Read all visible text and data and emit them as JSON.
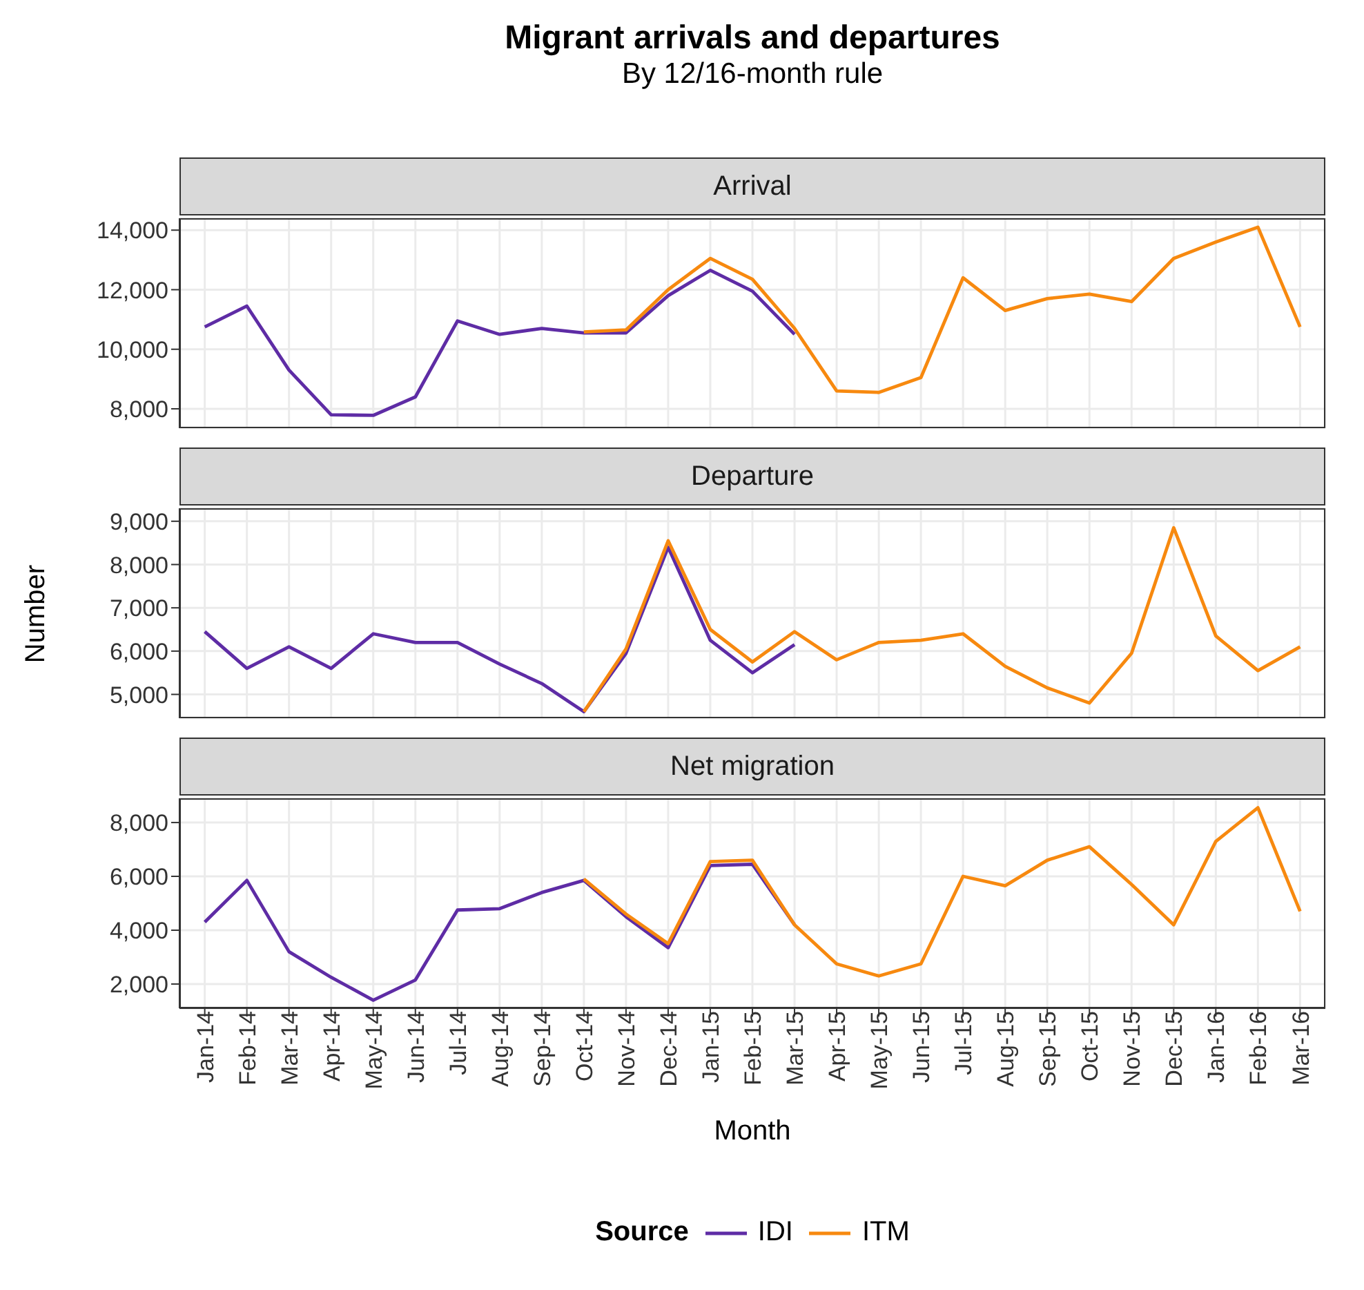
{
  "chart_data": [
    {
      "type": "line",
      "title": "Migrant arrivals and departures",
      "subtitle": "By 12/16-month rule",
      "annotations": [
        "Arrival"
      ],
      "series": [
        {
          "color": "#5e2ca5",
          "values": [
            10750,
            11450,
            9300,
            7800,
            7780,
            8400,
            10950,
            10500,
            10700,
            10550,
            10550,
            11800,
            12650,
            11950,
            10500,
            null,
            null,
            null,
            null,
            null,
            null,
            null,
            null,
            null,
            null,
            null,
            null
          ]
        },
        {
          "color": "#f7890f",
          "values": [
            null,
            null,
            null,
            null,
            null,
            null,
            null,
            null,
            null,
            10580,
            10650,
            12000,
            13050,
            12350,
            10700,
            8600,
            8550,
            9050,
            12400,
            11300,
            11700,
            11850,
            11600,
            13050,
            13600,
            14100,
            10750
          ]
        }
      ],
      "ylim": [
        7350,
        14400
      ],
      "yticks": [
        {
          "value": 8000,
          "label": "8,000"
        },
        {
          "value": 10000,
          "label": "10,000"
        },
        {
          "value": 12000,
          "label": "12,000"
        },
        {
          "value": 14000,
          "label": "14,000"
        }
      ],
      "grid": true,
      "legend": false,
      "tick_labels": "y"
    },
    {
      "type": "line",
      "ylabel": "Number",
      "annotations": [
        "Departure"
      ],
      "series": [
        {
          "color": "#5e2ca5",
          "values": [
            6450,
            5600,
            6100,
            5600,
            6400,
            6200,
            6200,
            5700,
            5250,
            4600,
            5950,
            8400,
            6250,
            5500,
            6150,
            null,
            null,
            null,
            null,
            null,
            null,
            null,
            null,
            null,
            null,
            null,
            null
          ]
        },
        {
          "color": "#f7890f",
          "values": [
            null,
            null,
            null,
            null,
            null,
            null,
            null,
            null,
            null,
            4600,
            6050,
            8550,
            6500,
            5750,
            6450,
            5800,
            6200,
            6250,
            6400,
            5650,
            5150,
            4800,
            5950,
            8850,
            6350,
            5550,
            6100
          ]
        }
      ],
      "ylim": [
        4450,
        9300
      ],
      "yticks": [
        {
          "value": 5000,
          "label": "5,000"
        },
        {
          "value": 6000,
          "label": "6,000"
        },
        {
          "value": 7000,
          "label": "7,000"
        },
        {
          "value": 8000,
          "label": "8,000"
        },
        {
          "value": 9000,
          "label": "9,000"
        }
      ],
      "grid": true,
      "legend": false,
      "tick_labels": "y"
    },
    {
      "type": "line",
      "xlabel": "Month",
      "legend_title": "Source",
      "annotations": [
        "Net migration"
      ],
      "categories": [
        "Jan-14",
        "Feb-14",
        "Mar-14",
        "Apr-14",
        "May-14",
        "Jun-14",
        "Jul-14",
        "Aug-14",
        "Sep-14",
        "Oct-14",
        "Nov-14",
        "Dec-14",
        "Jan-15",
        "Feb-15",
        "Mar-15",
        "Apr-15",
        "May-15",
        "Jun-15",
        "Jul-15",
        "Aug-15",
        "Sep-15",
        "Oct-15",
        "Nov-15",
        "Dec-15",
        "Jan-16",
        "Feb-16",
        "Mar-16"
      ],
      "series": [
        {
          "name": "IDI",
          "color": "#5e2ca5",
          "values": [
            4300,
            5850,
            3200,
            2250,
            1400,
            2150,
            4750,
            4800,
            5400,
            5850,
            4500,
            3350,
            6400,
            6450,
            4200,
            null,
            null,
            null,
            null,
            null,
            null,
            null,
            null,
            null,
            null,
            null,
            null
          ]
        },
        {
          "name": "ITM",
          "color": "#f7890f",
          "values": [
            null,
            null,
            null,
            null,
            null,
            null,
            null,
            null,
            null,
            5900,
            4600,
            3500,
            6550,
            6600,
            4200,
            2750,
            2300,
            2750,
            6000,
            5650,
            6600,
            7100,
            5700,
            4200,
            7300,
            8550,
            4700
          ]
        }
      ],
      "ylim": [
        1100,
        8900
      ],
      "yticks": [
        {
          "value": 2000,
          "label": "2,000"
        },
        {
          "value": 4000,
          "label": "4,000"
        },
        {
          "value": 6000,
          "label": "6,000"
        },
        {
          "value": 8000,
          "label": "8,000"
        }
      ],
      "grid": true,
      "legend": "bottom"
    }
  ]
}
